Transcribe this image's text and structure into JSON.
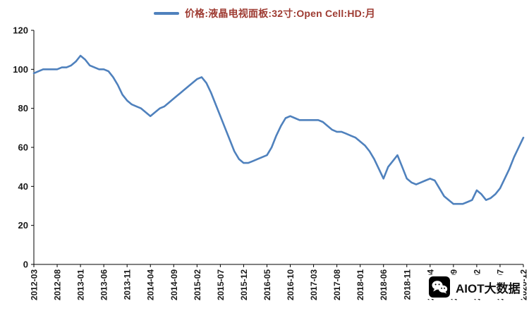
{
  "legend": {
    "label": "价格:液晶电视面板:32寸:Open Cell:HD:月"
  },
  "watermark": {
    "text": "AIOT大数据"
  },
  "colors": {
    "line": "#4F81BD",
    "title": "#9E3B32",
    "axis": "#000000",
    "axis_text": "#1A1A1A"
  },
  "chart_data": {
    "type": "line",
    "title": "价格:液晶电视面板:32寸:Open Cell:HD:月",
    "xlabel": "",
    "ylabel": "",
    "ylim": [
      0,
      120
    ],
    "y_ticks": [
      0,
      20,
      40,
      60,
      80,
      100,
      120
    ],
    "grid": false,
    "legend_position": "top",
    "x_tick_labels": [
      "2012-03",
      "2012-08",
      "2013-01",
      "2013-06",
      "2013-11",
      "2014-04",
      "2014-09",
      "2015-02",
      "2015-07",
      "2015-12",
      "2016-05",
      "2016-10",
      "2017-03",
      "2017-08",
      "2018-01",
      "2018-06",
      "2018-11",
      "2019-04",
      "2019-09",
      "2020-02",
      "2020-07",
      "2020-12"
    ],
    "x": [
      "2012-03",
      "2012-04",
      "2012-05",
      "2012-06",
      "2012-07",
      "2012-08",
      "2012-09",
      "2012-10",
      "2012-11",
      "2012-12",
      "2013-01",
      "2013-02",
      "2013-03",
      "2013-04",
      "2013-05",
      "2013-06",
      "2013-07",
      "2013-08",
      "2013-09",
      "2013-10",
      "2013-11",
      "2013-12",
      "2014-01",
      "2014-02",
      "2014-03",
      "2014-04",
      "2014-05",
      "2014-06",
      "2014-07",
      "2014-08",
      "2014-09",
      "2014-10",
      "2014-11",
      "2014-12",
      "2015-01",
      "2015-02",
      "2015-03",
      "2015-04",
      "2015-05",
      "2015-06",
      "2015-07",
      "2015-08",
      "2015-09",
      "2015-10",
      "2015-11",
      "2015-12",
      "2016-01",
      "2016-02",
      "2016-03",
      "2016-04",
      "2016-05",
      "2016-06",
      "2016-07",
      "2016-08",
      "2016-09",
      "2016-10",
      "2016-11",
      "2016-12",
      "2017-01",
      "2017-02",
      "2017-03",
      "2017-04",
      "2017-05",
      "2017-06",
      "2017-07",
      "2017-08",
      "2017-09",
      "2017-10",
      "2017-11",
      "2017-12",
      "2018-01",
      "2018-02",
      "2018-03",
      "2018-04",
      "2018-05",
      "2018-06",
      "2018-07",
      "2018-08",
      "2018-09",
      "2018-10",
      "2018-11",
      "2018-12",
      "2019-01",
      "2019-02",
      "2019-03",
      "2019-04",
      "2019-05",
      "2019-06",
      "2019-07",
      "2019-08",
      "2019-09",
      "2019-10",
      "2019-11",
      "2019-12",
      "2020-01",
      "2020-02",
      "2020-03",
      "2020-04",
      "2020-05",
      "2020-06",
      "2020-07",
      "2020-08",
      "2020-09",
      "2020-10",
      "2020-11",
      "2020-12"
    ],
    "series": [
      {
        "name": "价格:液晶电视面板:32寸:Open Cell:HD:月",
        "values": [
          98,
          99,
          100,
          100,
          100,
          100,
          101,
          101,
          102,
          104,
          107,
          105,
          102,
          101,
          100,
          100,
          99,
          96,
          92,
          87,
          84,
          82,
          81,
          80,
          78,
          76,
          78,
          80,
          81,
          83,
          85,
          87,
          89,
          91,
          93,
          95,
          96,
          93,
          88,
          82,
          76,
          70,
          64,
          58,
          54,
          52,
          52,
          53,
          54,
          55,
          56,
          60,
          66,
          71,
          75,
          76,
          75,
          74,
          74,
          74,
          74,
          74,
          73,
          71,
          69,
          68,
          68,
          67,
          66,
          65,
          63,
          61,
          58,
          54,
          49,
          44,
          50,
          53,
          56,
          50,
          44,
          42,
          41,
          42,
          43,
          44,
          43,
          39,
          35,
          33,
          31,
          31,
          31,
          32,
          33,
          38,
          36,
          33,
          34,
          36,
          39,
          44,
          49,
          55,
          60,
          65
        ]
      }
    ]
  }
}
